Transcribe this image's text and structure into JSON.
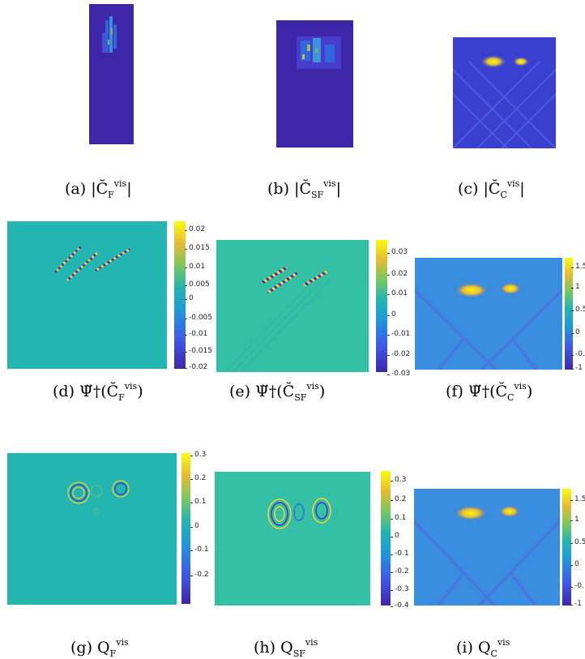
{
  "colors": {
    "background_teal": "#23b5b0",
    "background_green": "#34c0a4",
    "background_blue": "#3a67d7",
    "low": "#3e26a8",
    "high": "#f9fb0e"
  },
  "panels": {
    "a": {
      "label": "(a)",
      "expr": "|C̆",
      "sub": "F",
      "sup": "vis",
      "close": "|"
    },
    "b": {
      "label": "(b)",
      "expr": "|C̆",
      "sub": "SF",
      "sup": "vis",
      "close": "|"
    },
    "c": {
      "label": "(c)",
      "expr": "|C̆",
      "sub": "C",
      "sup": "vis",
      "close": "|"
    },
    "d": {
      "label": "(d)",
      "expr": "Ψ̆†(C̆",
      "sub": "F",
      "sup": "vis",
      "close": ")",
      "colorbar_ticks": [
        "0.02",
        "0.015",
        "0.01",
        "0.005",
        "0",
        "-0.005",
        "-0.01",
        "-0.015",
        "-0.02"
      ]
    },
    "e": {
      "label": "(e)",
      "expr": "Ψ̆†(C̆",
      "sub": "SF",
      "sup": "vis",
      "close": ")",
      "colorbar_ticks": [
        "0.03",
        "0.02",
        "0.01",
        "0",
        "-0.01",
        "-0.02",
        "-0.03"
      ]
    },
    "f": {
      "label": "(f)",
      "expr": "Ψ̆†(C̆",
      "sub": "C",
      "sup": "vis",
      "close": ")",
      "colorbar_ticks": [
        "1.5",
        "1",
        "0.5",
        "0",
        "-0.",
        "-1"
      ]
    },
    "g": {
      "label": "(g)",
      "expr": "Q",
      "sub": "F",
      "sup": "vis",
      "close": "",
      "colorbar_ticks": [
        "0.3",
        "0.2",
        "0.1",
        "0",
        "-0.1",
        "-0.2"
      ]
    },
    "h": {
      "label": "(h)",
      "expr": "Q",
      "sub": "SF",
      "sup": "vis",
      "close": "",
      "colorbar_ticks": [
        "0.3",
        "0.2",
        "0.1",
        "0",
        "-0.1",
        "-0.2",
        "-0.3",
        "-0.4"
      ]
    },
    "i": {
      "label": "(i)",
      "expr": "Q",
      "sub": "C",
      "sup": "vis",
      "close": "",
      "colorbar_ticks": [
        "1.5",
        "1",
        "0.5",
        "0",
        "-0.",
        "-1"
      ]
    }
  }
}
